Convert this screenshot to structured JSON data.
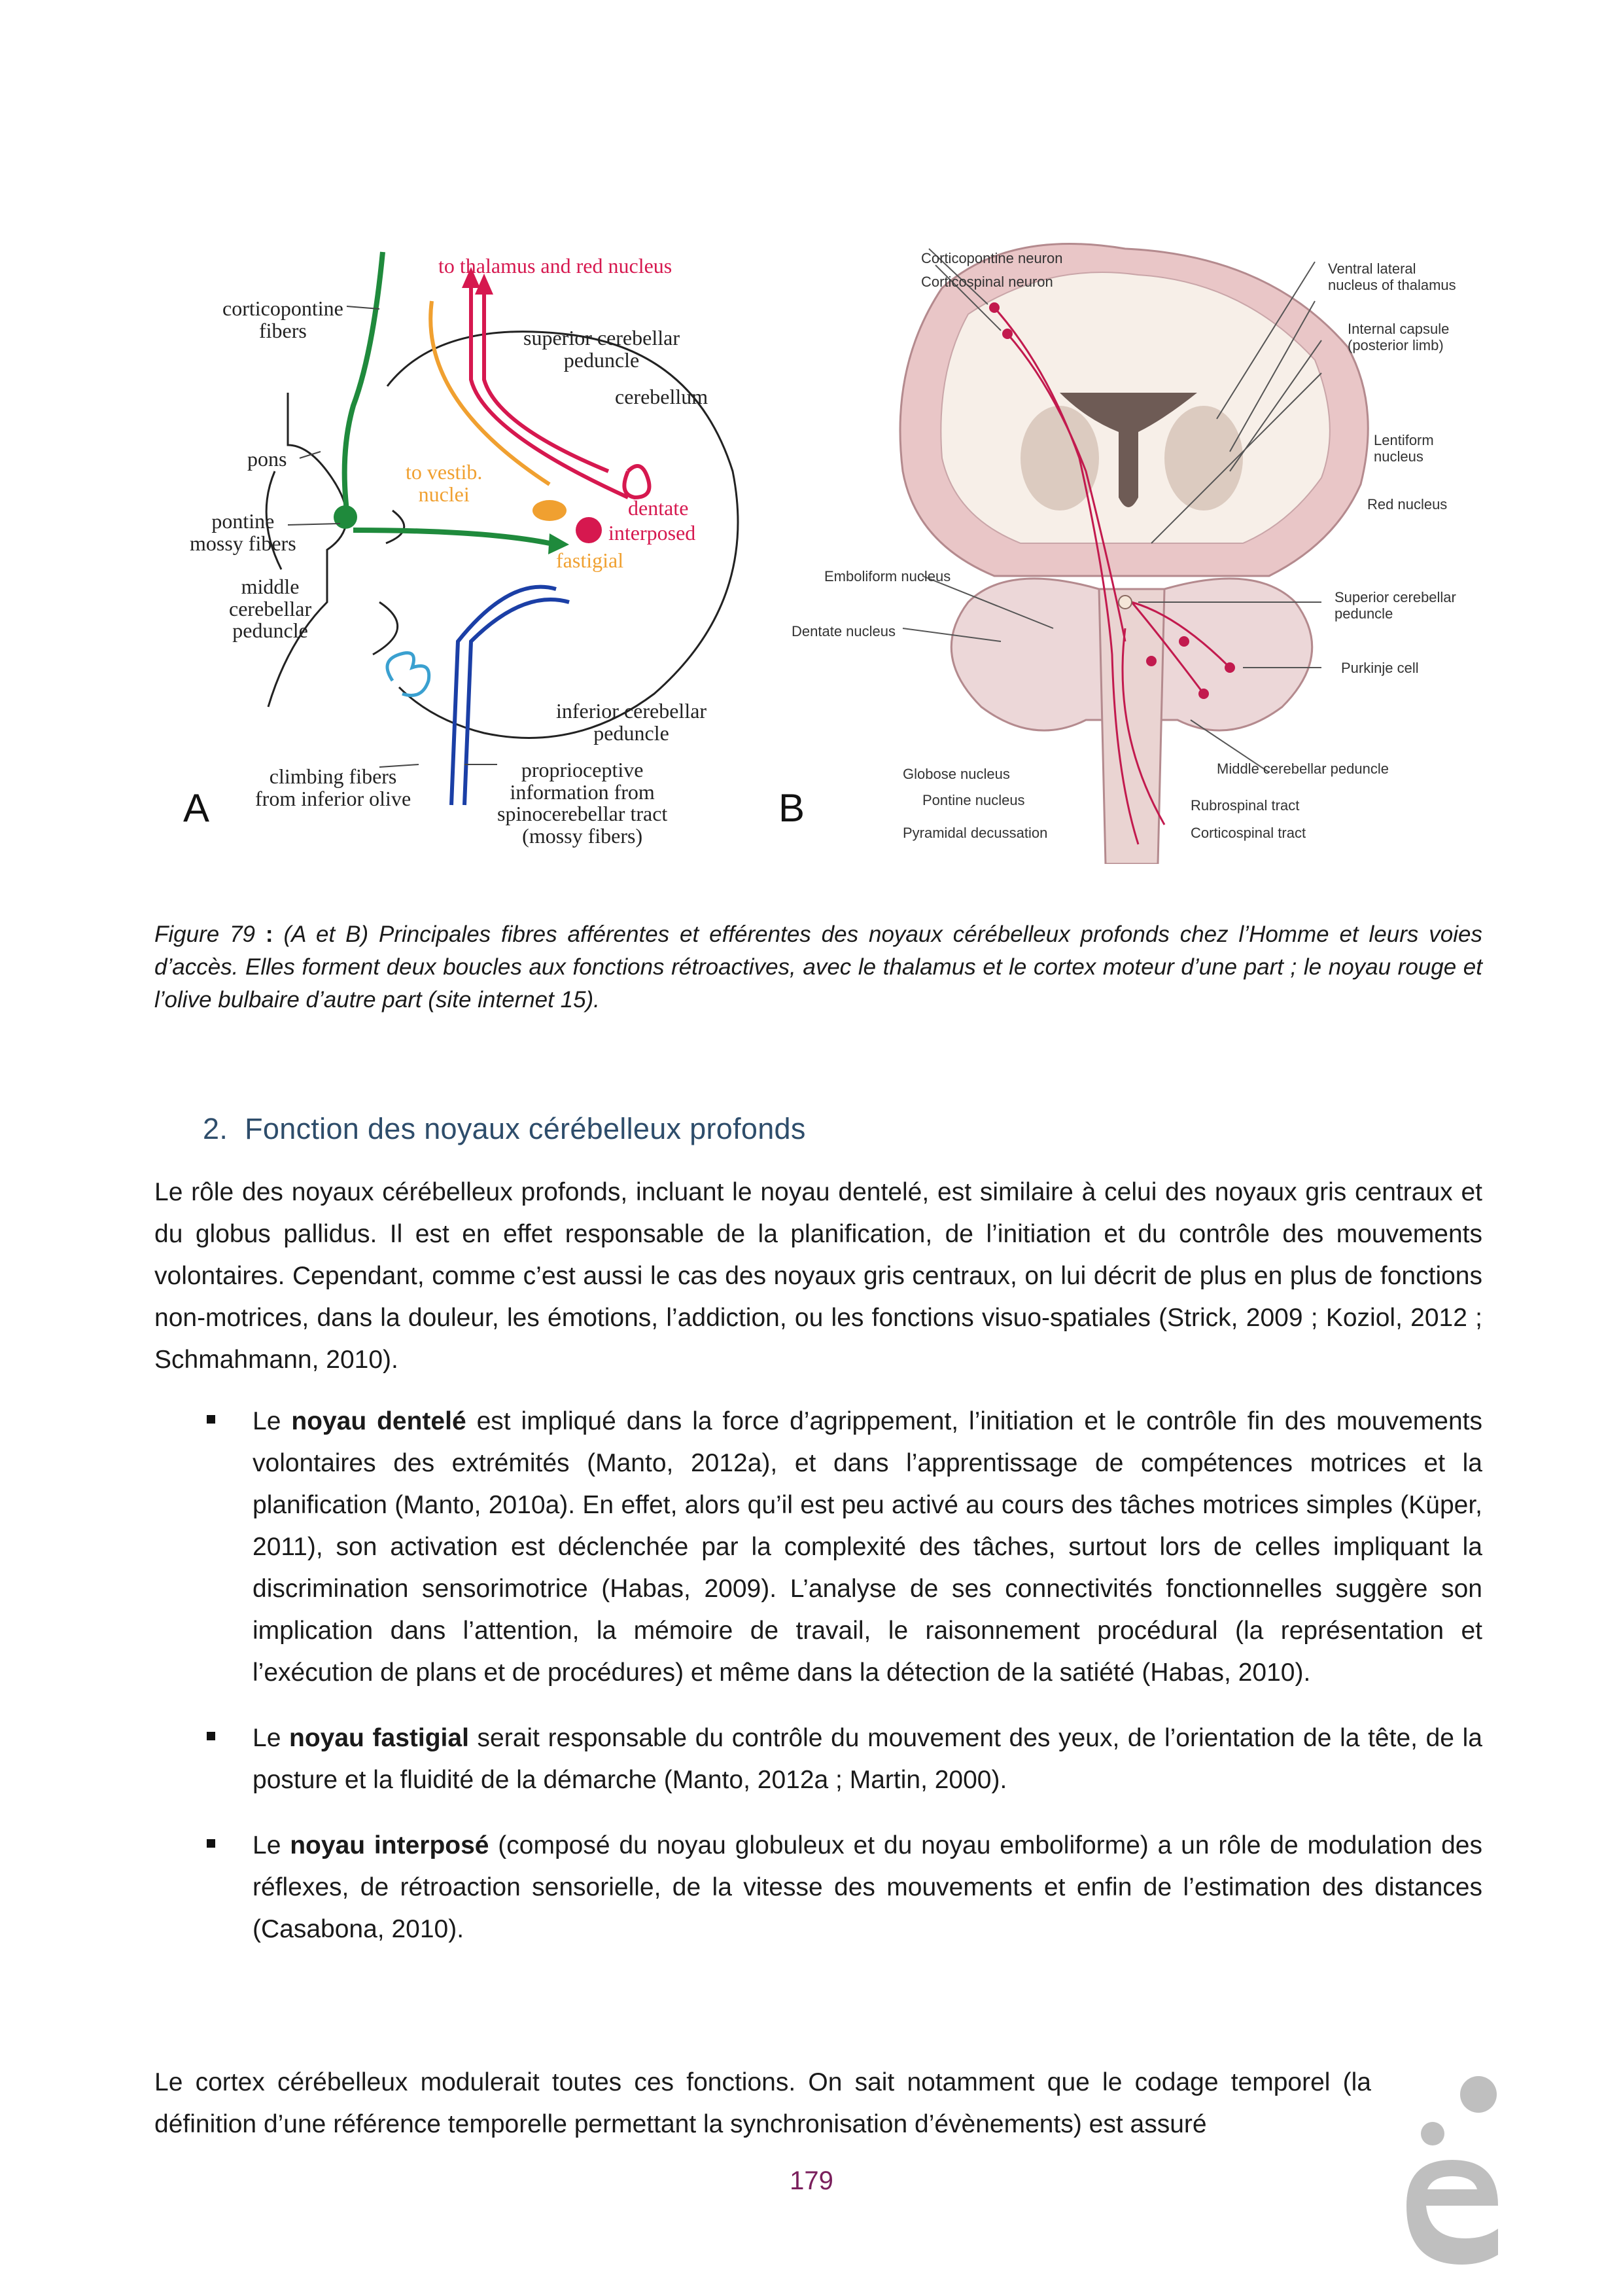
{
  "figure": {
    "panel_a": {
      "letter": "A",
      "labels": {
        "thalamus_red": "to thalamus and red nucleus",
        "corticopontine": "corticopontine\nfibers",
        "superior_peduncle": "superior cerebellar\npeduncle",
        "cerebellum": "cerebellum",
        "pons": "pons",
        "to_vestib": "to vestib.\nnuclei",
        "pontine_mossy": "pontine\nmossy fibers",
        "dentate": "dentate",
        "interposed": "interposed",
        "fastigial": "fastigial",
        "middle_peduncle": "middle\ncerebellar\npeduncle",
        "inferior_peduncle": "inferior cerebellar\npeduncle",
        "climbing": "climbing fibers\nfrom inferior olive",
        "proprioceptive": "proprioceptive\ninformation from\nspinocerebellar tract\n(mossy fibers)"
      }
    },
    "panel_b": {
      "letter": "B",
      "labels": {
        "corticopontine_neuron": "Corticopontine neuron",
        "corticospinal_neuron": "Corticospinal neuron",
        "ventral_lateral": "Ventral lateral\nnucleus of thalamus",
        "internal_capsule": "Internal capsule\n(posterior limb)",
        "lentiform": "Lentiform\nnucleus",
        "red_nucleus": "Red nucleus",
        "emboliform": "Emboliform nucleus",
        "dentate_nucleus": "Dentate nucleus",
        "superior_peduncle": "Superior cerebellar\npeduncle",
        "purkinje": "Purkinje cell",
        "middle_peduncle": "Middle cerebellar peduncle",
        "globose": "Globose nucleus",
        "pontine_nucleus": "Pontine nucleus",
        "rubrospinal": "Rubrospinal tract",
        "pyramidal": "Pyramidal decussation",
        "corticospinal_tract": "Corticospinal tract"
      }
    },
    "caption": {
      "label": "Figure 79 ",
      "colon": ":",
      "text": " (A et B) Principales fibres afférentes et efférentes des noyaux cérébelleux profonds chez l’Homme et leurs voies d’accès. Elles forment deux boucles aux fonctions rétroactives, avec le thalamus et le cortex moteur d’une part ; le noyau rouge et l’olive bulbaire d’autre part (site internet 15)."
    }
  },
  "section": {
    "number": "2.",
    "title": "Fonction des noyaux cérébelleux profonds"
  },
  "paragraph_1": "Le rôle des noyaux cérébelleux profonds, incluant le noyau dentelé, est similaire à celui des noyaux gris centraux et du globus pallidus. Il est en effet responsable de la planification, de l’initiation et du contrôle des mouvements volontaires. Cependant, comme c’est aussi le cas des noyaux gris centraux, on lui décrit de plus en plus de fonctions non-motrices, dans la douleur, les émotions, l’addiction, ou les fonctions visuo-spatiales (Strick, 2009 ; Koziol, 2012 ; Schmahmann, 2010).",
  "bullets": [
    {
      "prefix": "Le ",
      "term": "noyau dentelé",
      "text": " est impliqué dans la force d’agrippement, l’initiation et le contrôle fin des mouvements volontaires des extrémités (Manto, 2012a), et dans l’apprentissage de compétences motrices et la planification (Manto, 2010a). En effet, alors qu’il est peu activé au cours des tâches motrices simples (Küper, 2011), son activation est déclenchée par la complexité des tâches, surtout lors de celles impliquant la discrimination sensorimotrice (Habas, 2009). L’analyse de ses connectivités fonctionnelles suggère son implication dans l’attention, la mémoire de travail, le raisonnement procédural (la représentation et l’exécution de plans et de procédures) et même dans la détection de la satiété (Habas, 2010)."
    },
    {
      "prefix": "Le ",
      "term": "noyau fastigial",
      "text": " serait responsable du contrôle du mouvement des yeux, de l’orientation de la tête, de la posture et la fluidité de la démarche (Manto, 2012a ; Martin, 2000)."
    },
    {
      "prefix": "Le ",
      "term": "noyau interposé",
      "text": " (composé du noyau globuleux et du noyau emboliforme) a un rôle de modulation des réflexes, de rétroaction sensorielle, de la vitesse des mouvements et enfin de l’estimation des distances (Casabona, 2010)."
    }
  ],
  "paragraph_2": "Le cortex cérébelleux modulerait toutes ces fonctions. On sait notamment que le codage temporel (la définition d’une référence temporelle permettant la synchronisation d’évènements) est assuré",
  "page_number": "179",
  "colors": {
    "green_fiber": "#1f8a3c",
    "red_fiber": "#d6184f",
    "orange_fiber": "#f0a030",
    "blue_fiber": "#1b3fa6",
    "heading": "#2e4d6b",
    "page_number": "#7a1f5c",
    "tissue_pink": "#e8c9cc",
    "logo_gray": "#bfbfbf"
  }
}
